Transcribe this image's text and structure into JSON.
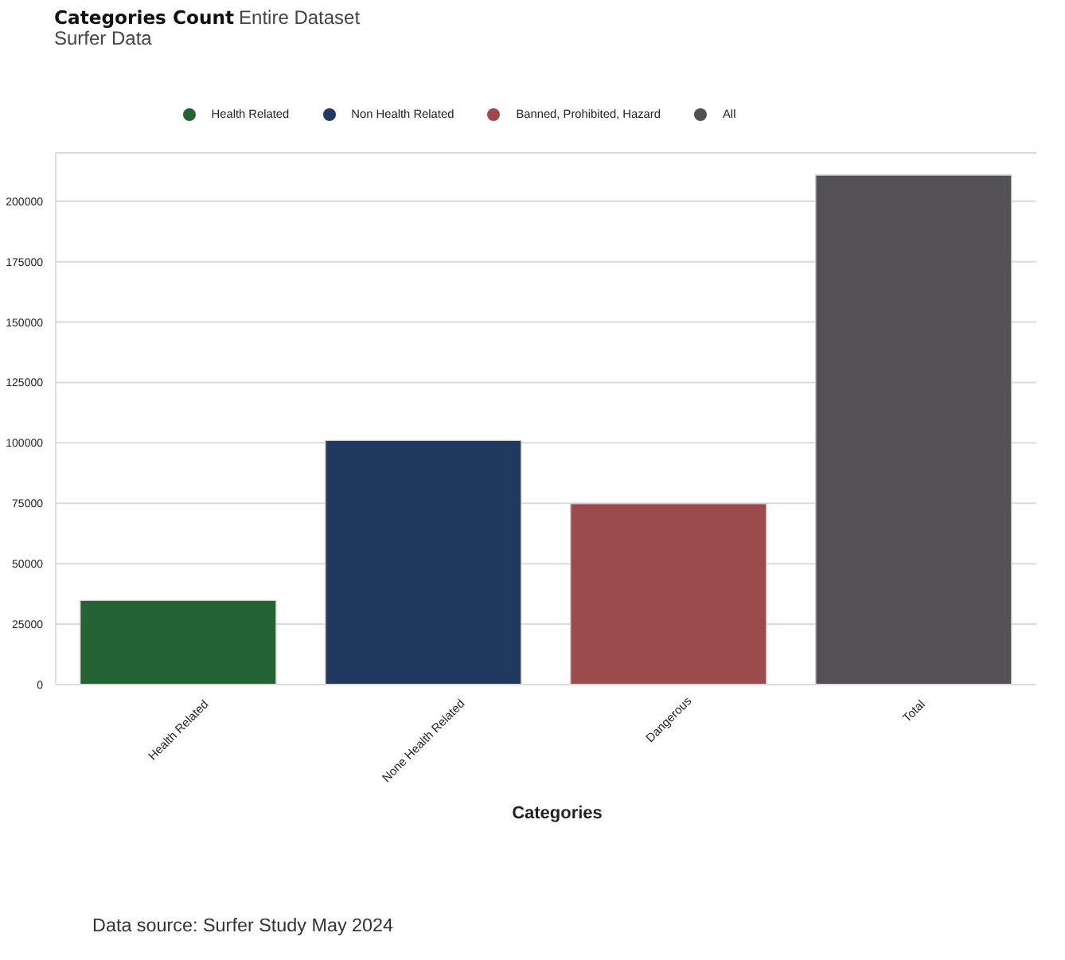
{
  "chart_data": {
    "type": "bar",
    "title": "Categories Count",
    "subtitle": "Entire Dataset",
    "xlabel": "Categories",
    "annotations": [
      "Surfer Data",
      "Data source: Surfer Study May 2024"
    ],
    "categories": [
      "Health Related",
      "None Health Related",
      "Dangerous",
      "Total"
    ],
    "series": [
      {
        "name": "Health Related",
        "color": "#246434",
        "values": [
          34800,
          null,
          null,
          null
        ]
      },
      {
        "name": "Non Health Related",
        "color": "#22395f",
        "values": [
          null,
          101000,
          null,
          null
        ]
      },
      {
        "name": "Banned, Prohibited, Hazard",
        "color": "#9c4a4b",
        "values": [
          null,
          null,
          74800,
          null
        ]
      },
      {
        "name": "All",
        "color": "#535156",
        "values": [
          null,
          null,
          null,
          210800
        ]
      }
    ],
    "stacked": true,
    "ylim": [
      0,
      220000
    ],
    "yticks": [
      0,
      25000,
      50000,
      75000,
      100000,
      125000,
      150000,
      175000,
      200000
    ],
    "grid": "y",
    "legend": "top"
  }
}
